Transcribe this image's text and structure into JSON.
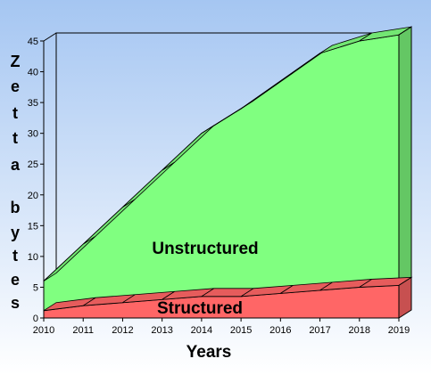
{
  "chart_data": {
    "type": "area",
    "stacked": true,
    "three_d": true,
    "title": "",
    "xlabel": "Years",
    "ylabel": "Zetta bytes",
    "x": [
      "2010",
      "2011",
      "2012",
      "2013",
      "2014",
      "2015",
      "2016",
      "2017",
      "2018",
      "2019"
    ],
    "ylim": [
      0,
      45
    ],
    "yticks": [
      0,
      5,
      10,
      15,
      20,
      25,
      30,
      35,
      40,
      45
    ],
    "grid": false,
    "series": [
      {
        "name": "Structured",
        "color": "#ff6666",
        "values": [
          1.2,
          2.0,
          2.5,
          3.0,
          3.5,
          3.5,
          4.0,
          4.5,
          5.0,
          5.3
        ]
      },
      {
        "name": "Unstructured",
        "color": "#80ff80",
        "values": [
          4.8,
          10.0,
          15.5,
          21.0,
          26.5,
          30.5,
          34.5,
          38.5,
          40.0,
          40.7
        ]
      }
    ],
    "background_gradient": [
      "#a5c6f2",
      "#ffffff"
    ]
  }
}
